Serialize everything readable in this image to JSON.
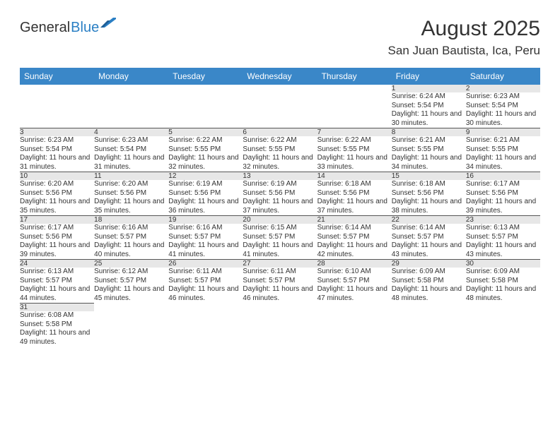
{
  "brand": {
    "general": "General",
    "blue": "Blue"
  },
  "title": "August 2025",
  "location": "San Juan Bautista, Ica, Peru",
  "colors": {
    "header_bg": "#3a87c8",
    "header_fg": "#ffffff",
    "daynum_bg": "#e7e7e7",
    "logo_blue": "#2a7fc4"
  },
  "weekdays": [
    "Sunday",
    "Monday",
    "Tuesday",
    "Wednesday",
    "Thursday",
    "Friday",
    "Saturday"
  ],
  "weeks": [
    [
      null,
      null,
      null,
      null,
      null,
      {
        "num": "1",
        "sunrise": "Sunrise: 6:24 AM",
        "sunset": "Sunset: 5:54 PM",
        "daylight": "Daylight: 11 hours and 30 minutes."
      },
      {
        "num": "2",
        "sunrise": "Sunrise: 6:23 AM",
        "sunset": "Sunset: 5:54 PM",
        "daylight": "Daylight: 11 hours and 30 minutes."
      }
    ],
    [
      {
        "num": "3",
        "sunrise": "Sunrise: 6:23 AM",
        "sunset": "Sunset: 5:54 PM",
        "daylight": "Daylight: 11 hours and 31 minutes."
      },
      {
        "num": "4",
        "sunrise": "Sunrise: 6:23 AM",
        "sunset": "Sunset: 5:54 PM",
        "daylight": "Daylight: 11 hours and 31 minutes."
      },
      {
        "num": "5",
        "sunrise": "Sunrise: 6:22 AM",
        "sunset": "Sunset: 5:55 PM",
        "daylight": "Daylight: 11 hours and 32 minutes."
      },
      {
        "num": "6",
        "sunrise": "Sunrise: 6:22 AM",
        "sunset": "Sunset: 5:55 PM",
        "daylight": "Daylight: 11 hours and 32 minutes."
      },
      {
        "num": "7",
        "sunrise": "Sunrise: 6:22 AM",
        "sunset": "Sunset: 5:55 PM",
        "daylight": "Daylight: 11 hours and 33 minutes."
      },
      {
        "num": "8",
        "sunrise": "Sunrise: 6:21 AM",
        "sunset": "Sunset: 5:55 PM",
        "daylight": "Daylight: 11 hours and 34 minutes."
      },
      {
        "num": "9",
        "sunrise": "Sunrise: 6:21 AM",
        "sunset": "Sunset: 5:55 PM",
        "daylight": "Daylight: 11 hours and 34 minutes."
      }
    ],
    [
      {
        "num": "10",
        "sunrise": "Sunrise: 6:20 AM",
        "sunset": "Sunset: 5:56 PM",
        "daylight": "Daylight: 11 hours and 35 minutes."
      },
      {
        "num": "11",
        "sunrise": "Sunrise: 6:20 AM",
        "sunset": "Sunset: 5:56 PM",
        "daylight": "Daylight: 11 hours and 35 minutes."
      },
      {
        "num": "12",
        "sunrise": "Sunrise: 6:19 AM",
        "sunset": "Sunset: 5:56 PM",
        "daylight": "Daylight: 11 hours and 36 minutes."
      },
      {
        "num": "13",
        "sunrise": "Sunrise: 6:19 AM",
        "sunset": "Sunset: 5:56 PM",
        "daylight": "Daylight: 11 hours and 37 minutes."
      },
      {
        "num": "14",
        "sunrise": "Sunrise: 6:18 AM",
        "sunset": "Sunset: 5:56 PM",
        "daylight": "Daylight: 11 hours and 37 minutes."
      },
      {
        "num": "15",
        "sunrise": "Sunrise: 6:18 AM",
        "sunset": "Sunset: 5:56 PM",
        "daylight": "Daylight: 11 hours and 38 minutes."
      },
      {
        "num": "16",
        "sunrise": "Sunrise: 6:17 AM",
        "sunset": "Sunset: 5:56 PM",
        "daylight": "Daylight: 11 hours and 39 minutes."
      }
    ],
    [
      {
        "num": "17",
        "sunrise": "Sunrise: 6:17 AM",
        "sunset": "Sunset: 5:56 PM",
        "daylight": "Daylight: 11 hours and 39 minutes."
      },
      {
        "num": "18",
        "sunrise": "Sunrise: 6:16 AM",
        "sunset": "Sunset: 5:57 PM",
        "daylight": "Daylight: 11 hours and 40 minutes."
      },
      {
        "num": "19",
        "sunrise": "Sunrise: 6:16 AM",
        "sunset": "Sunset: 5:57 PM",
        "daylight": "Daylight: 11 hours and 41 minutes."
      },
      {
        "num": "20",
        "sunrise": "Sunrise: 6:15 AM",
        "sunset": "Sunset: 5:57 PM",
        "daylight": "Daylight: 11 hours and 41 minutes."
      },
      {
        "num": "21",
        "sunrise": "Sunrise: 6:14 AM",
        "sunset": "Sunset: 5:57 PM",
        "daylight": "Daylight: 11 hours and 42 minutes."
      },
      {
        "num": "22",
        "sunrise": "Sunrise: 6:14 AM",
        "sunset": "Sunset: 5:57 PM",
        "daylight": "Daylight: 11 hours and 43 minutes."
      },
      {
        "num": "23",
        "sunrise": "Sunrise: 6:13 AM",
        "sunset": "Sunset: 5:57 PM",
        "daylight": "Daylight: 11 hours and 43 minutes."
      }
    ],
    [
      {
        "num": "24",
        "sunrise": "Sunrise: 6:13 AM",
        "sunset": "Sunset: 5:57 PM",
        "daylight": "Daylight: 11 hours and 44 minutes."
      },
      {
        "num": "25",
        "sunrise": "Sunrise: 6:12 AM",
        "sunset": "Sunset: 5:57 PM",
        "daylight": "Daylight: 11 hours and 45 minutes."
      },
      {
        "num": "26",
        "sunrise": "Sunrise: 6:11 AM",
        "sunset": "Sunset: 5:57 PM",
        "daylight": "Daylight: 11 hours and 46 minutes."
      },
      {
        "num": "27",
        "sunrise": "Sunrise: 6:11 AM",
        "sunset": "Sunset: 5:57 PM",
        "daylight": "Daylight: 11 hours and 46 minutes."
      },
      {
        "num": "28",
        "sunrise": "Sunrise: 6:10 AM",
        "sunset": "Sunset: 5:57 PM",
        "daylight": "Daylight: 11 hours and 47 minutes."
      },
      {
        "num": "29",
        "sunrise": "Sunrise: 6:09 AM",
        "sunset": "Sunset: 5:58 PM",
        "daylight": "Daylight: 11 hours and 48 minutes."
      },
      {
        "num": "30",
        "sunrise": "Sunrise: 6:09 AM",
        "sunset": "Sunset: 5:58 PM",
        "daylight": "Daylight: 11 hours and 48 minutes."
      }
    ],
    [
      {
        "num": "31",
        "sunrise": "Sunrise: 6:08 AM",
        "sunset": "Sunset: 5:58 PM",
        "daylight": "Daylight: 11 hours and 49 minutes."
      },
      null,
      null,
      null,
      null,
      null,
      null
    ]
  ]
}
